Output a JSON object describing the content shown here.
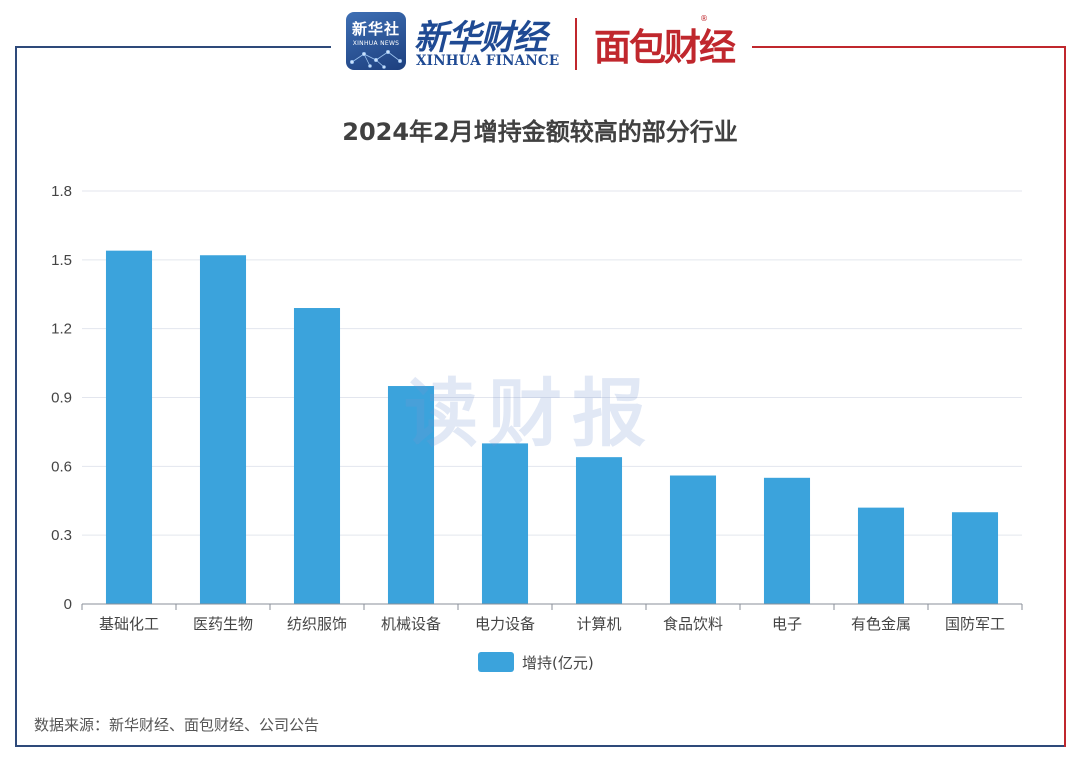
{
  "header": {
    "xinhua_badge_cn": "新华社",
    "xinhua_badge_en": "XINHUA NEWS",
    "xinhua_finance_cn": "新华财经",
    "xinhua_finance_en": "XINHUA FINANCE",
    "mianbao_logo": "面包财经",
    "mianbao_reg": "®"
  },
  "colors": {
    "bar": "#3ba3dc",
    "frame_left": "#2e4a7a",
    "frame_right": "#c0272d",
    "grid": "#e3e6ee"
  },
  "watermark": "读财报",
  "chart_data": {
    "type": "bar",
    "title": "2024年2月增持金额较高的部分行业",
    "categories": [
      "基础化工",
      "医药生物",
      "纺织服饰",
      "机械设备",
      "电力设备",
      "计算机",
      "食品饮料",
      "电子",
      "有色金属",
      "国防军工"
    ],
    "series": [
      {
        "name": "增持(亿元)",
        "values": [
          1.54,
          1.52,
          1.29,
          0.95,
          0.7,
          0.64,
          0.56,
          0.55,
          0.42,
          0.4
        ]
      }
    ],
    "ylim": [
      0,
      1.8
    ],
    "yticks": [
      "0",
      "0.3",
      "0.6",
      "0.9",
      "1.2",
      "1.5",
      "1.8"
    ],
    "grid": true,
    "legend": "bottom-center"
  },
  "source_note": "数据来源：新华财经、面包财经、公司公告"
}
